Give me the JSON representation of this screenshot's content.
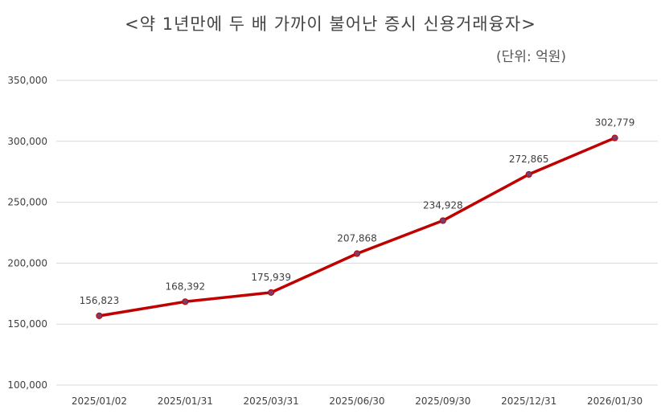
{
  "chart_data": {
    "type": "line",
    "title": "<약 1년만에 두 배 가까이 불어난 증시 신용거래융자>",
    "subtitle": "(단위: 억원)",
    "xlabel": "",
    "ylabel": "",
    "categories": [
      "2025/01/02",
      "2025/01/31",
      "2025/03/31",
      "2025/06/30",
      "2025/09/30",
      "2025/12/31",
      "2026/01/30"
    ],
    "series": [
      {
        "values": [
          156823,
          168392,
          175939,
          207868,
          234928,
          272865,
          302779
        ],
        "labels": [
          "156,823",
          "168,392",
          "175,939",
          "207,868",
          "234,928",
          "272,865",
          "302,779"
        ],
        "color": "#C00000",
        "marker_color": "#7A3E6E"
      }
    ],
    "ylim": [
      100000,
      350000
    ],
    "yticks": [
      100000,
      150000,
      200000,
      250000,
      300000,
      350000
    ],
    "ytick_labels": [
      "100,000",
      "150,000",
      "200,000",
      "250,000",
      "300,000",
      "350,000"
    ],
    "grid": true,
    "gridline_color": "#D9D9D9",
    "legend": "none"
  }
}
